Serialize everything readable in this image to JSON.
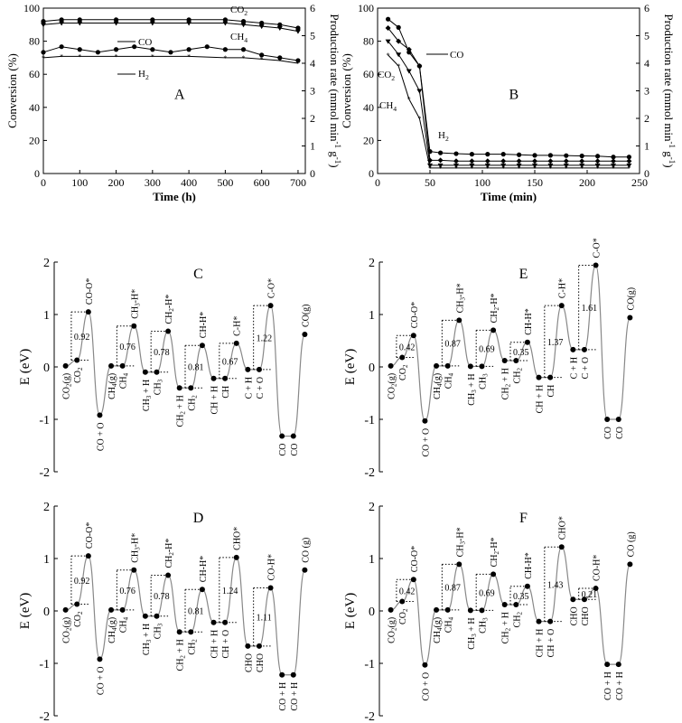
{
  "panels": {
    "A": {
      "label": "A",
      "xlabel": "Time (h)",
      "ylabel_left": "Conversion (%)",
      "ylabel_right": "Production rate (mmol min",
      "ylabel_right_sup1": "-1",
      "ylabel_right_mid": " g",
      "ylabel_right_sup2": "-1",
      "ylabel_right_end": ")",
      "series_labels": {
        "co2": "CO",
        "co2_sub": "2",
        "ch4": "CH",
        "ch4_sub": "4",
        "co": "CO",
        "h2": "H",
        "h2_sub": "2"
      }
    },
    "B": {
      "label": "B",
      "xlabel": "Time (min)",
      "ylabel_left": "Conversion (%)",
      "ylabel_right": "Production rate (mmol min",
      "ylabel_right_sup1": "-1",
      "ylabel_right_mid": " g",
      "ylabel_right_sup2": "-1",
      "ylabel_right_end": ")",
      "series_labels": {
        "co": "CO",
        "co2": "CO",
        "co2_sub": "2",
        "ch4": "CH",
        "ch4_sub": "4",
        "h2": "H",
        "h2_sub": "2"
      }
    },
    "energy_ylabel": "E (eV)"
  },
  "chart_data": [
    {
      "panel": "A",
      "type": "line",
      "xlim": [
        0,
        720
      ],
      "xticks": [
        0,
        100,
        200,
        300,
        400,
        500,
        600,
        700
      ],
      "ylim_left": [
        0,
        100
      ],
      "yticks_left": [
        0,
        20,
        40,
        60,
        80,
        100
      ],
      "ylim_right": [
        0,
        6
      ],
      "yticks_right": [
        0,
        1,
        2,
        3,
        4,
        5,
        6
      ],
      "series": [
        {
          "name": "CO2",
          "axis": "left",
          "x": [
            0,
            50,
            100,
            200,
            300,
            400,
            500,
            550,
            600,
            650,
            700
          ],
          "values": [
            92,
            93,
            93,
            93,
            93,
            93,
            93,
            92,
            91,
            90,
            88
          ]
        },
        {
          "name": "CH4",
          "axis": "left",
          "x": [
            0,
            50,
            100,
            200,
            300,
            400,
            500,
            550,
            600,
            650,
            700
          ],
          "values": [
            90,
            91,
            91,
            91,
            91,
            91,
            91,
            90,
            89,
            88,
            86
          ]
        },
        {
          "name": "CO",
          "axis": "right",
          "x": [
            0,
            50,
            100,
            150,
            200,
            250,
            300,
            350,
            400,
            450,
            500,
            550,
            600,
            650,
            700
          ],
          "values": [
            4.4,
            4.6,
            4.5,
            4.4,
            4.5,
            4.6,
            4.5,
            4.4,
            4.5,
            4.6,
            4.5,
            4.5,
            4.3,
            4.2,
            4.1
          ]
        },
        {
          "name": "H2",
          "axis": "right",
          "x": [
            0,
            50,
            100,
            200,
            300,
            400,
            500,
            550,
            600,
            650,
            700
          ],
          "values": [
            4.2,
            4.25,
            4.25,
            4.25,
            4.25,
            4.25,
            4.2,
            4.2,
            4.15,
            4.1,
            4.0
          ]
        }
      ]
    },
    {
      "panel": "B",
      "type": "line",
      "xlim": [
        0,
        250
      ],
      "xticks": [
        0,
        50,
        100,
        150,
        200,
        250
      ],
      "ylim_left": [
        0,
        100
      ],
      "yticks_left": [
        0,
        20,
        40,
        60,
        80,
        100
      ],
      "ylim_right": [
        0,
        6
      ],
      "yticks_right": [
        0,
        1,
        2,
        3,
        4,
        5,
        6
      ],
      "series": [
        {
          "name": "CO",
          "axis": "right",
          "x": [
            10,
            20,
            30,
            40,
            50,
            60,
            75,
            90,
            105,
            120,
            135,
            150,
            165,
            180,
            195,
            210,
            225,
            240
          ],
          "values": [
            5.6,
            5.3,
            4.4,
            3.9,
            0.8,
            0.75,
            0.72,
            0.7,
            0.7,
            0.7,
            0.68,
            0.66,
            0.66,
            0.65,
            0.64,
            0.63,
            0.6,
            0.6
          ]
        },
        {
          "name": "CO2",
          "axis": "left",
          "x": [
            10,
            20,
            30,
            40,
            50,
            60,
            75,
            90,
            105,
            120,
            135,
            150,
            165,
            180,
            195,
            210,
            225,
            240
          ],
          "values": [
            88,
            80,
            75,
            65,
            8,
            8,
            7.5,
            7.5,
            7.5,
            7.5,
            7.5,
            7.5,
            7.5,
            7.5,
            7.5,
            7.5,
            7.5,
            7.5
          ]
        },
        {
          "name": "CH4",
          "axis": "left",
          "x": [
            10,
            20,
            30,
            40,
            50,
            60,
            75,
            90,
            105,
            120,
            135,
            150,
            165,
            180,
            195,
            210,
            225,
            240
          ],
          "values": [
            80,
            72,
            62,
            50,
            5,
            5,
            5,
            5,
            5,
            5,
            5,
            5,
            5,
            5,
            5,
            5,
            5,
            5
          ]
        },
        {
          "name": "H2",
          "axis": "right",
          "x": [
            10,
            20,
            30,
            40,
            50,
            60,
            75,
            90,
            105,
            120,
            135,
            150,
            165,
            180,
            195,
            210,
            225,
            240
          ],
          "values": [
            4.3,
            3.9,
            2.7,
            2.0,
            0.2,
            0.2,
            0.2,
            0.2,
            0.2,
            0.2,
            0.2,
            0.2,
            0.2,
            0.2,
            0.2,
            0.2,
            0.2,
            0.2
          ]
        }
      ]
    },
    {
      "panel": "C",
      "type": "line",
      "ylim": [
        -2,
        2
      ],
      "yticks": [
        -2,
        -1,
        0,
        1,
        2
      ],
      "ylabel": "E (eV)",
      "levels": [
        {
          "label": "CO2(g)",
          "E": 0.02
        },
        {
          "label": "CO2",
          "E": 0.13
        },
        {
          "label": "CO-O*",
          "E": 1.05
        },
        {
          "label": "CO + O",
          "E": -0.92
        },
        {
          "label": "CH4(g)",
          "E": 0.02
        },
        {
          "label": "CH4",
          "E": 0.02
        },
        {
          "label": "CH3-H*",
          "E": 0.78
        },
        {
          "label": "CH3 + H",
          "E": -0.1
        },
        {
          "label": "CH3",
          "E": -0.1
        },
        {
          "label": "CH2-H*",
          "E": 0.68
        },
        {
          "label": "CH2 + H",
          "E": -0.4
        },
        {
          "label": "CH2",
          "E": -0.4
        },
        {
          "label": "CH-H*",
          "E": 0.41
        },
        {
          "label": "CH + H",
          "E": -0.22
        },
        {
          "label": "CH",
          "E": -0.22
        },
        {
          "label": "C-H*",
          "E": 0.45
        },
        {
          "label": "C + H",
          "E": -0.05
        },
        {
          "label": "C + O",
          "E": -0.05
        },
        {
          "label": "C-O*",
          "E": 1.17
        },
        {
          "label": "CO",
          "E": -1.32
        },
        {
          "label": "CO",
          "E": -1.32
        },
        {
          "label": "CO(g)",
          "E": 0.62
        }
      ],
      "barriers": [
        "0.92",
        "0.76",
        "0.78",
        "0.81",
        "0.67",
        "1.22"
      ]
    },
    {
      "panel": "D",
      "type": "line",
      "ylim": [
        -2,
        2
      ],
      "yticks": [
        -2,
        -1,
        0,
        1,
        2
      ],
      "ylabel": "E (eV)",
      "levels": [
        {
          "label": "CO2(g)",
          "E": 0.02
        },
        {
          "label": "CO2",
          "E": 0.13
        },
        {
          "label": "CO-O*",
          "E": 1.05
        },
        {
          "label": "CO + O",
          "E": -0.92
        },
        {
          "label": "CH4(g)",
          "E": 0.02
        },
        {
          "label": "CH4",
          "E": 0.02
        },
        {
          "label": "CH3-H*",
          "E": 0.78
        },
        {
          "label": "CH3 + H",
          "E": -0.1
        },
        {
          "label": "CH3",
          "E": -0.1
        },
        {
          "label": "CH2-H*",
          "E": 0.68
        },
        {
          "label": "CH2 + H",
          "E": -0.4
        },
        {
          "label": "CH2",
          "E": -0.4
        },
        {
          "label": "CH-H*",
          "E": 0.41
        },
        {
          "label": "CH + H",
          "E": -0.22
        },
        {
          "label": "CH + O",
          "E": -0.22
        },
        {
          "label": "CHO*",
          "E": 1.02
        },
        {
          "label": "CHO",
          "E": -0.67
        },
        {
          "label": "CHO",
          "E": -0.67
        },
        {
          "label": "CO-H*",
          "E": 0.44
        },
        {
          "label": "CO + H",
          "E": -1.22
        },
        {
          "label": "CO + H",
          "E": -1.22
        },
        {
          "label": "CO (g)",
          "E": 0.78
        }
      ],
      "barriers": [
        "0.92",
        "0.76",
        "0.78",
        "0.81",
        "1.24",
        "1.11"
      ]
    },
    {
      "panel": "E",
      "type": "line",
      "ylim": [
        -2,
        2
      ],
      "yticks": [
        -2,
        -1,
        0,
        1,
        2
      ],
      "ylabel": "E (eV)",
      "levels": [
        {
          "label": "CO2(g)",
          "E": 0.02
        },
        {
          "label": "CO2",
          "E": 0.18
        },
        {
          "label": "CO-O*",
          "E": 0.6
        },
        {
          "label": "CO + O",
          "E": -1.03
        },
        {
          "label": "CH4(g)",
          "E": 0.02
        },
        {
          "label": "CH4",
          "E": 0.02
        },
        {
          "label": "CH3-H*",
          "E": 0.89
        },
        {
          "label": "CH3 + H",
          "E": 0.01
        },
        {
          "label": "CH3",
          "E": 0.01
        },
        {
          "label": "CH2-H*",
          "E": 0.7
        },
        {
          "label": "CH2 + H",
          "E": 0.12
        },
        {
          "label": "CH2",
          "E": 0.12
        },
        {
          "label": "CH-H*",
          "E": 0.47
        },
        {
          "label": "CH + H",
          "E": -0.2
        },
        {
          "label": "CH",
          "E": -0.2
        },
        {
          "label": "C-H*",
          "E": 1.17
        },
        {
          "label": "C + H",
          "E": 0.33
        },
        {
          "label": "C + O",
          "E": 0.33
        },
        {
          "label": "C-O*",
          "E": 1.94
        },
        {
          "label": "CO",
          "E": -1.0
        },
        {
          "label": "CO",
          "E": -1.0
        },
        {
          "label": "CO(g)",
          "E": 0.94
        }
      ],
      "barriers": [
        "0.42",
        "0.87",
        "0.69",
        "0.35",
        "1.37",
        "1.61"
      ]
    },
    {
      "panel": "F",
      "type": "line",
      "ylim": [
        -2,
        2
      ],
      "yticks": [
        -2,
        -1,
        0,
        1,
        2
      ],
      "ylabel": "E (eV)",
      "levels": [
        {
          "label": "CO2(g)",
          "E": 0.02
        },
        {
          "label": "CO2",
          "E": 0.18
        },
        {
          "label": "CO-O*",
          "E": 0.6
        },
        {
          "label": "CO + O",
          "E": -1.03
        },
        {
          "label": "CH4(g)",
          "E": 0.02
        },
        {
          "label": "CH4",
          "E": 0.02
        },
        {
          "label": "CH3-H*",
          "E": 0.89
        },
        {
          "label": "CH3 + H",
          "E": 0.01
        },
        {
          "label": "CH3",
          "E": 0.01
        },
        {
          "label": "CH2-H*",
          "E": 0.7
        },
        {
          "label": "CH2 + H",
          "E": 0.12
        },
        {
          "label": "CH2",
          "E": 0.12
        },
        {
          "label": "CH-H*",
          "E": 0.47
        },
        {
          "label": "CH + H",
          "E": -0.2
        },
        {
          "label": "CH + O",
          "E": -0.2
        },
        {
          "label": "CHO*",
          "E": 1.22
        },
        {
          "label": "CHO",
          "E": 0.22
        },
        {
          "label": "CHO",
          "E": 0.22
        },
        {
          "label": "CO-H*",
          "E": 0.43
        },
        {
          "label": "CO + H",
          "E": -1.02
        },
        {
          "label": "CO + H",
          "E": -1.02
        },
        {
          "label": "CO (g)",
          "E": 0.89
        }
      ],
      "barriers": [
        "0.42",
        "0.87",
        "0.69",
        "0.35",
        "1.43",
        "0.21"
      ]
    }
  ]
}
